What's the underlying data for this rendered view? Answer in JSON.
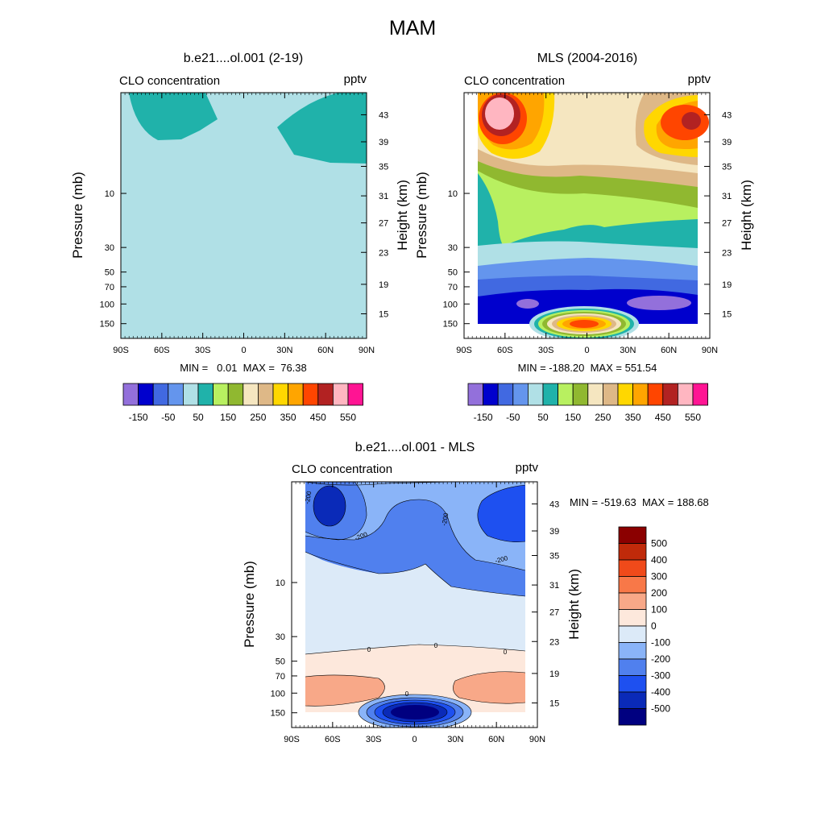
{
  "figure": {
    "title": "MAM"
  },
  "chart_data": [
    {
      "type": "heatmap",
      "title": "b.e21....ol.001 (2-19)",
      "variable_label": "CLO concentration",
      "units": "pptv",
      "xlabel": "",
      "ylabel": "Pressure (mb)",
      "ylabel_right": "Height (km)",
      "x_ticks": [
        "90S",
        "60S",
        "30S",
        "0",
        "30N",
        "60N",
        "90N"
      ],
      "y_ticks": [
        "10",
        "30",
        "50",
        "70",
        "100",
        "150"
      ],
      "y_ticks_right": [
        "43",
        "39",
        "35",
        "31",
        "27",
        "23",
        "19",
        "15"
      ],
      "min_max": "MIN =   0.01  MAX =  76.38",
      "colorbar": {
        "labels": [
          "-150",
          "-50",
          "50",
          "150",
          "250",
          "350",
          "450",
          "550"
        ],
        "colors": [
          "#9370db",
          "#0000cd",
          "#4169e1",
          "#6495ed",
          "#b0e0e6",
          "#20b2aa",
          "#b8f060",
          "#90b830",
          "#f5e6c0",
          "#deb887",
          "#ffd700",
          "#ffa500",
          "#ff4500",
          "#b22222",
          "#ffb6c1",
          "#ff1493"
        ]
      },
      "field_summary": "uniform 0-50 pptv with 50-100 pptv patches near the top at high latitudes"
    },
    {
      "type": "heatmap",
      "title": "MLS (2004-2016)",
      "variable_label": "CLO concentration",
      "units": "pptv",
      "xlabel": "",
      "ylabel": "Pressure (mb)",
      "ylabel_right": "Height (km)",
      "x_ticks": [
        "90S",
        "60S",
        "30S",
        "0",
        "30N",
        "60N",
        "90N"
      ],
      "y_ticks": [
        "10",
        "30",
        "50",
        "70",
        "100",
        "150"
      ],
      "y_ticks_right": [
        "43",
        "39",
        "35",
        "31",
        "27",
        "23",
        "19",
        "15"
      ],
      "min_max": "MIN = -188.20  MAX = 551.54",
      "colorbar": {
        "labels": [
          "-150",
          "-50",
          "50",
          "150",
          "250",
          "350",
          "450",
          "550"
        ]
      }
    },
    {
      "type": "heatmap",
      "title": "b.e21....ol.001 - MLS",
      "variable_label": "CLO concentration",
      "units": "pptv",
      "xlabel": "",
      "ylabel": "Pressure (mb)",
      "ylabel_right": "Height (km)",
      "x_ticks": [
        "90S",
        "60S",
        "30S",
        "0",
        "30N",
        "60N",
        "90N"
      ],
      "y_ticks": [
        "10",
        "30",
        "50",
        "70",
        "100",
        "150"
      ],
      "y_ticks_right": [
        "43",
        "39",
        "35",
        "31",
        "27",
        "23",
        "19",
        "15"
      ],
      "min_max": "MIN = -519.63  MAX = 188.68",
      "contour_labels": [
        "-200",
        "-200",
        "-200",
        "-200",
        "0",
        "0",
        "0",
        "0"
      ],
      "colorbar": {
        "labels": [
          "500",
          "400",
          "300",
          "200",
          "100",
          "0",
          "-100",
          "-200",
          "-300",
          "-400",
          "-500"
        ],
        "colors": [
          "#8b0000",
          "#c02a0a",
          "#f04a1a",
          "#f87848",
          "#f8a888",
          "#fde8dc",
          "#dceaf8",
          "#8ab4f8",
          "#5080ee",
          "#1e50f0",
          "#0a2ab8",
          "#000080"
        ]
      }
    }
  ]
}
